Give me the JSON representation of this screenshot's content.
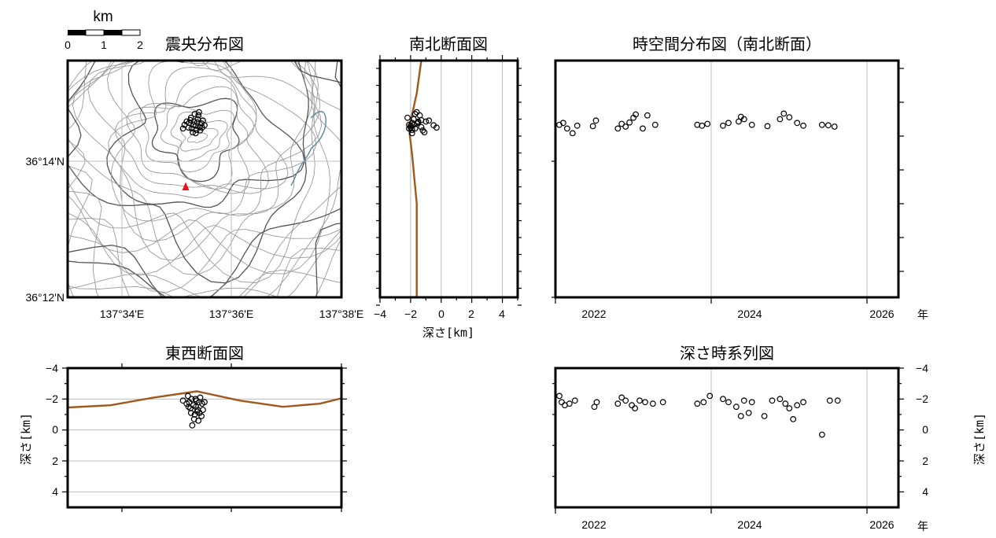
{
  "scale_bar": {
    "unit": "km",
    "ticks": [
      "0",
      "1",
      "2"
    ]
  },
  "panels": {
    "map": {
      "title": "震央分布図",
      "lat_labels": [
        "36°14'N",
        "36°12'N"
      ],
      "lon_labels": [
        "137°34'E",
        "137°36'E",
        "137°38'E"
      ]
    },
    "ns": {
      "title": "南北断面図",
      "xlabel": "深さ[km]",
      "xticks": [
        "−4",
        "−2",
        "0",
        "2",
        "4"
      ]
    },
    "st": {
      "title": "時空間分布図（南北断面）",
      "xticks": [
        "2022",
        "2024",
        "2026"
      ],
      "year_unit": "年"
    },
    "ew": {
      "title": "東西断面図",
      "ylabel": "深さ[km]",
      "yticks": [
        "−4",
        "−2",
        "0",
        "2",
        "4"
      ]
    },
    "dt": {
      "title": "深さ時系列図",
      "ylabel": "深さ[km]",
      "yticks": [
        "−4",
        "−2",
        "0",
        "2",
        "4"
      ],
      "xticks": [
        "2022",
        "2024",
        "2026"
      ],
      "year_unit": "年"
    }
  },
  "colors": {
    "topography": "#a0581c",
    "volcano_marker": "#e8131a",
    "event": "#000000",
    "grid": "#bdbdbd",
    "contour": "#7a7a7a",
    "water": "#5a8a9a"
  },
  "chart_data": [
    {
      "type": "scatter",
      "panel": "epicenter_map",
      "title": "震央分布図",
      "xlim": [
        137.5475,
        137.6365
      ],
      "ylim": [
        36.2,
        36.2505
      ],
      "volcano_summit": {
        "lon": 137.5895,
        "lat": 36.2345
      },
      "events": [
        [
          137.5855,
          36.2368
        ],
        [
          137.587,
          36.2372
        ],
        [
          137.5878,
          36.236
        ],
        [
          137.5886,
          36.2375
        ],
        [
          137.5892,
          36.2366
        ],
        [
          137.5898,
          36.238
        ],
        [
          137.5904,
          36.2363
        ],
        [
          137.591,
          36.2371
        ],
        [
          137.5882,
          36.2352
        ],
        [
          137.5894,
          36.2357
        ],
        [
          137.5876,
          36.2383
        ],
        [
          137.59,
          36.2388
        ],
        [
          137.5915,
          36.2377
        ],
        [
          137.5868,
          36.2362
        ],
        [
          137.5888,
          36.2391
        ],
        [
          137.5906,
          36.2356
        ],
        [
          137.5862,
          36.2375
        ],
        [
          137.5896,
          36.2373
        ],
        [
          137.592,
          36.2367
        ],
        [
          137.585,
          36.236
        ],
        [
          137.5884,
          36.2368
        ],
        [
          137.5902,
          36.2395
        ],
        [
          137.5912,
          36.2362
        ],
        [
          137.5874,
          36.2378
        ],
        [
          137.5891,
          36.235
        ]
      ]
    },
    {
      "type": "scatter",
      "panel": "north_south_section",
      "title": "南北断面図",
      "xlabel": "深さ[km]",
      "xlim": [
        -4,
        5
      ],
      "ylim": [
        36.2,
        36.2505
      ],
      "topography": [
        [
          -1.3,
          36.2505
        ],
        [
          -1.6,
          36.2435
        ],
        [
          -2.0,
          36.2375
        ],
        [
          -2.1,
          36.236
        ],
        [
          -1.9,
          36.2305
        ],
        [
          -1.6,
          36.22
        ],
        [
          -1.6,
          36.2
        ]
      ],
      "events": [
        [
          -2.1,
          36.2368
        ],
        [
          -1.9,
          36.2372
        ],
        [
          -1.7,
          36.236
        ],
        [
          -1.5,
          36.2375
        ],
        [
          -2.0,
          36.2366
        ],
        [
          -1.8,
          36.238
        ],
        [
          -1.3,
          36.2363
        ],
        [
          -1.6,
          36.2371
        ],
        [
          -1.1,
          36.2352
        ],
        [
          -1.9,
          36.2357
        ],
        [
          -2.2,
          36.2383
        ],
        [
          -1.4,
          36.2388
        ],
        [
          -0.8,
          36.2377
        ],
        [
          -2.0,
          36.2362
        ],
        [
          -1.7,
          36.2391
        ],
        [
          -1.2,
          36.2356
        ],
        [
          -1.0,
          36.2375
        ],
        [
          -1.5,
          36.2373
        ],
        [
          -0.5,
          36.2367
        ],
        [
          -2.1,
          36.236
        ],
        [
          -1.8,
          36.2368
        ],
        [
          -1.6,
          36.2395
        ],
        [
          -0.3,
          36.2362
        ],
        [
          -1.3,
          36.2378
        ],
        [
          -1.9,
          36.235
        ]
      ]
    },
    {
      "type": "scatter",
      "panel": "space_time",
      "title": "時空間分布図（南北断面）",
      "xlabel": "年",
      "xlim": [
        2022.0,
        2026.4
      ],
      "ylim": [
        36.2,
        36.2505
      ],
      "events": [
        [
          2022.05,
          36.2368
        ],
        [
          2022.1,
          36.2372
        ],
        [
          2022.15,
          36.236
        ],
        [
          2022.22,
          36.235
        ],
        [
          2022.28,
          36.2366
        ],
        [
          2022.48,
          36.2365
        ],
        [
          2022.52,
          36.2377
        ],
        [
          2022.8,
          36.236
        ],
        [
          2022.85,
          36.237
        ],
        [
          2022.9,
          36.2364
        ],
        [
          2022.95,
          36.2373
        ],
        [
          2023.0,
          36.2383
        ],
        [
          2023.03,
          36.239
        ],
        [
          2023.12,
          36.236
        ],
        [
          2023.18,
          36.2388
        ],
        [
          2023.28,
          36.2368
        ],
        [
          2023.82,
          36.2368
        ],
        [
          2023.88,
          36.2366
        ],
        [
          2023.95,
          36.237
        ],
        [
          2024.15,
          36.2366
        ],
        [
          2024.22,
          36.2372
        ],
        [
          2024.35,
          36.2375
        ],
        [
          2024.38,
          36.2385
        ],
        [
          2024.42,
          36.238
        ],
        [
          2024.52,
          36.2368
        ],
        [
          2024.72,
          36.2365
        ],
        [
          2024.88,
          36.238
        ],
        [
          2024.93,
          36.2392
        ],
        [
          2025.0,
          36.2384
        ],
        [
          2025.1,
          36.2372
        ],
        [
          2025.18,
          36.2366
        ],
        [
          2025.42,
          36.2368
        ],
        [
          2025.5,
          36.2367
        ],
        [
          2025.58,
          36.2364
        ]
      ]
    },
    {
      "type": "scatter",
      "panel": "east_west_section",
      "title": "東西断面図",
      "ylabel": "深さ[km]",
      "xlim": [
        137.5475,
        137.6365
      ],
      "ylim": [
        -4,
        5
      ],
      "topography": [
        [
          137.5475,
          -1.45
        ],
        [
          137.5615,
          -1.6
        ],
        [
          137.5755,
          -2.1
        ],
        [
          137.5895,
          -2.5
        ],
        [
          137.6035,
          -1.9
        ],
        [
          137.6175,
          -1.5
        ],
        [
          137.6295,
          -1.7
        ],
        [
          137.6365,
          -2.05
        ]
      ],
      "events": [
        [
          137.585,
          -1.9
        ],
        [
          137.5862,
          -1.7
        ],
        [
          137.587,
          -1.8
        ],
        [
          137.5878,
          -2.0
        ],
        [
          137.5884,
          -1.6
        ],
        [
          137.5892,
          -1.5
        ],
        [
          137.5898,
          -1.3
        ],
        [
          137.5904,
          -1.1
        ],
        [
          137.591,
          -0.9
        ],
        [
          137.5886,
          -0.7
        ],
        [
          137.588,
          -0.3
        ],
        [
          137.5894,
          -1.9
        ],
        [
          137.5906,
          -2.1
        ],
        [
          137.5874,
          -1.4
        ],
        [
          137.5912,
          -1.7
        ],
        [
          137.59,
          -0.6
        ],
        [
          137.5866,
          -2.2
        ],
        [
          137.5896,
          -1.2
        ],
        [
          137.592,
          -1.8
        ],
        [
          137.5888,
          -1.0
        ],
        [
          137.5868,
          -1.5
        ],
        [
          137.5902,
          -1.8
        ],
        [
          137.5915,
          -1.3
        ],
        [
          137.5876,
          -1.1
        ],
        [
          137.5891,
          -2.0
        ]
      ]
    },
    {
      "type": "scatter",
      "panel": "depth_time",
      "title": "深さ時系列図",
      "ylabel": "深さ[km]",
      "xlabel": "年",
      "xlim": [
        2022.0,
        2026.4
      ],
      "ylim": [
        -4,
        5
      ],
      "events": [
        [
          2022.05,
          -2.2
        ],
        [
          2022.08,
          -1.8
        ],
        [
          2022.12,
          -1.6
        ],
        [
          2022.18,
          -1.7
        ],
        [
          2022.25,
          -1.9
        ],
        [
          2022.5,
          -1.5
        ],
        [
          2022.53,
          -1.8
        ],
        [
          2022.8,
          -1.7
        ],
        [
          2022.85,
          -2.1
        ],
        [
          2022.9,
          -1.9
        ],
        [
          2022.98,
          -1.6
        ],
        [
          2023.02,
          -1.4
        ],
        [
          2023.08,
          -1.9
        ],
        [
          2023.15,
          -1.8
        ],
        [
          2023.25,
          -1.7
        ],
        [
          2023.38,
          -1.8
        ],
        [
          2023.82,
          -1.7
        ],
        [
          2023.9,
          -1.8
        ],
        [
          2023.98,
          -2.2
        ],
        [
          2024.15,
          -2.0
        ],
        [
          2024.22,
          -1.8
        ],
        [
          2024.32,
          -1.5
        ],
        [
          2024.38,
          -0.9
        ],
        [
          2024.42,
          -1.9
        ],
        [
          2024.48,
          -1.1
        ],
        [
          2024.52,
          -1.8
        ],
        [
          2024.68,
          -0.9
        ],
        [
          2024.78,
          -1.9
        ],
        [
          2024.88,
          -2.0
        ],
        [
          2024.95,
          -1.7
        ],
        [
          2025.0,
          -1.4
        ],
        [
          2025.05,
          -0.7
        ],
        [
          2025.1,
          -1.6
        ],
        [
          2025.18,
          -1.8
        ],
        [
          2025.42,
          0.3
        ],
        [
          2025.52,
          -1.9
        ],
        [
          2025.62,
          -1.9
        ]
      ]
    }
  ]
}
